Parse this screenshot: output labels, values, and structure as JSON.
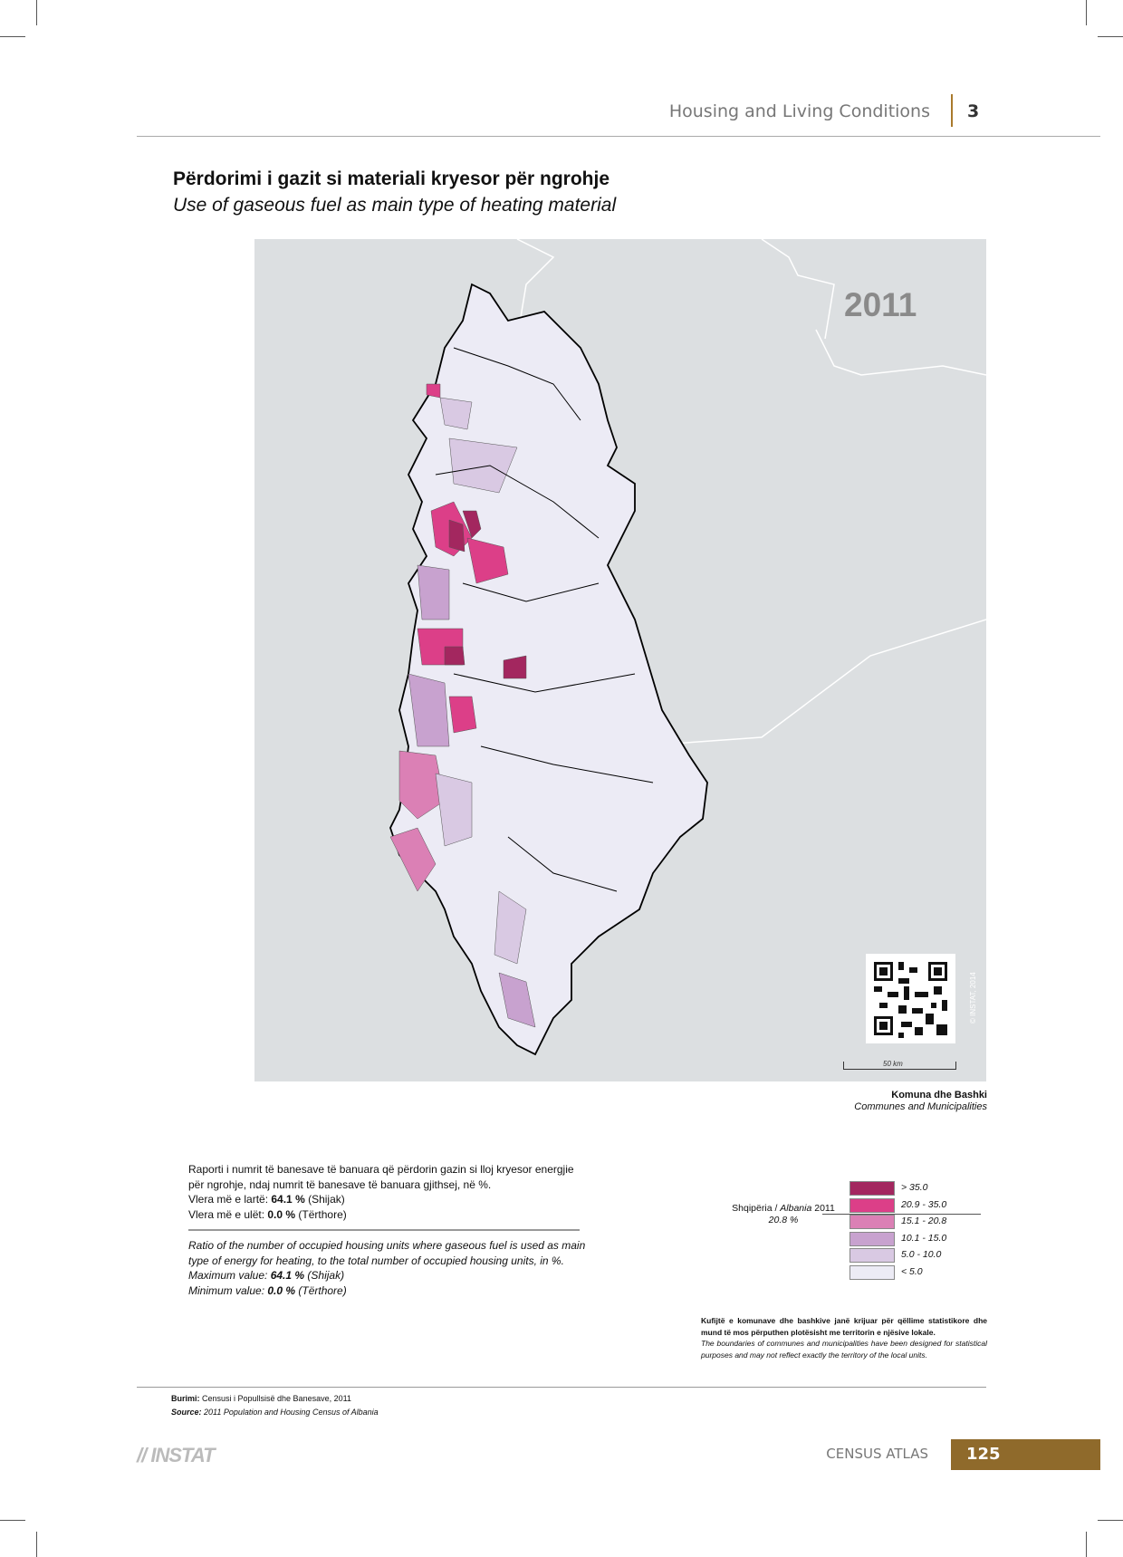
{
  "header": {
    "section": "Housing and Living Conditions",
    "chapter": "3"
  },
  "title": {
    "sq": "Përdorimi i gazit si materiali kryesor për ngrohje",
    "en": "Use of gaseous fuel as main type of heating material"
  },
  "map": {
    "year": "2011",
    "scale": "50 km",
    "copyright": "© INSTAT, 2014",
    "layer_sq": "Komuna dhe Bashki",
    "layer_en": "Communes and Municipalities",
    "qr_icon": "qr-code"
  },
  "description": {
    "sq": {
      "text": "Raporti i numrit të banesave të banuara që përdorin gazin si lloj kryesor energjie për ngrohje, ndaj numrit të banesave të banuara gjithsej, në %.",
      "max_label": "Vlera më e lartë: ",
      "max_value": "64.1 %",
      "max_place": " (Shijak)",
      "min_label": "Vlera më e ulët: ",
      "min_value": "0.0 %",
      "min_place": " (Tërthore)"
    },
    "en": {
      "text": "Ratio of the number of occupied housing units where gaseous fuel is used as main type of energy for heating, to the total number of occupied housing units, in %.",
      "max_label": "Maximum value: ",
      "max_value": "64.1 %",
      "max_place": " (Shijak)",
      "min_label": "Minimum value: ",
      "min_value": "0.0 %",
      "min_place": " (Tërthore)"
    }
  },
  "legend": {
    "national_label": "Shqipëria / ",
    "national_label_en": "Albania",
    "national_year": " 2011",
    "national_value": "20.8 %",
    "classes": [
      {
        "label": "> 35.0",
        "color": "#a3275f"
      },
      {
        "label": "20.9 - 35.0",
        "color": "#dc3f88"
      },
      {
        "label": "15.1 - 20.8",
        "color": "#db80b5"
      },
      {
        "label": "10.1 - 15.0",
        "color": "#c8a2cf"
      },
      {
        "label": "5.0 - 10.0",
        "color": "#d9c9e3"
      },
      {
        "label": "< 5.0",
        "color": "#ecebf5"
      }
    ]
  },
  "note": {
    "sq": "Kufijtë e komunave dhe bashkive janë krijuar për qëllime statistikore dhe mund të mos përputhen plotësisht me territorin e njësive lokale.",
    "en": "The boundaries of communes and municipalities have been designed for statistical purposes and may not reflect exactly the territory of the local units."
  },
  "footer": {
    "source_sq_label": "Burimi:",
    "source_sq": " Censusi i Popullsisë dhe Banesave, 2011",
    "source_en_label": "Source:",
    "source_en": " 2011 Population and Housing Census of Albania",
    "logo": "INSTAT",
    "atlas": "CENSUS ATLAS",
    "page": "125"
  }
}
